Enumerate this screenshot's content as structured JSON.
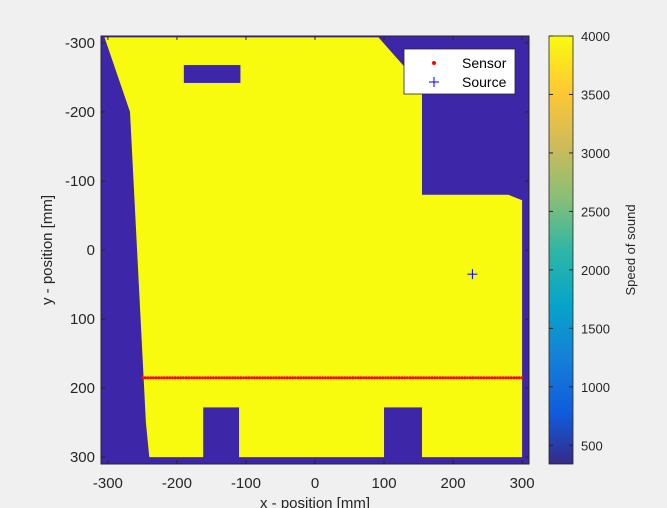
{
  "chart_data": {
    "type": "heatmap",
    "title": "",
    "xlabel": "x - position [mm]",
    "ylabel": "y - position [mm]",
    "xlim": [
      -310,
      310
    ],
    "ylim": [
      -310,
      310
    ],
    "y_reversed": true,
    "xticks": [
      -300,
      -200,
      -100,
      0,
      100,
      200,
      300
    ],
    "yticks": [
      -300,
      -200,
      -100,
      0,
      100,
      200,
      300
    ],
    "colorbar": {
      "label": "Speed of sound",
      "range": [
        340,
        4000
      ],
      "ticks": [
        500,
        1000,
        1500,
        2000,
        2500,
        3000,
        3500,
        4000
      ],
      "colormap": "parula"
    },
    "field": {
      "background_value": 340,
      "object_value": 4000,
      "object_outline_mm": [
        [
          -305,
          -308
        ],
        [
          -95,
          -308
        ],
        [
          92,
          -308
        ],
        [
          152,
          -240
        ],
        [
          155,
          -242
        ],
        [
          155,
          -80
        ],
        [
          280,
          -80
        ],
        [
          300,
          -72
        ],
        [
          300,
          300
        ],
        [
          -240,
          300
        ],
        [
          -245,
          250
        ],
        [
          -268,
          -200
        ],
        [
          -305,
          -308
        ]
      ],
      "holes_mm": [
        {
          "x1": -190,
          "x2": -108,
          "y1": -268,
          "y2": -242
        },
        {
          "x1": -162,
          "x2": -110,
          "y1": 228,
          "y2": 305
        },
        {
          "x1": 100,
          "x2": 155,
          "y1": 228,
          "y2": 305
        }
      ]
    },
    "series": [
      {
        "name": "Sensor",
        "marker": ".",
        "color": "#ff0000",
        "x_range": [
          -250,
          300
        ],
        "y": 185,
        "count": 140
      },
      {
        "name": "Source",
        "marker": "+",
        "color": "#0000ff",
        "x": [
          228
        ],
        "y": [
          35
        ]
      }
    ],
    "legend": {
      "position": "top-right",
      "entries": [
        "Sensor",
        "Source"
      ]
    }
  }
}
